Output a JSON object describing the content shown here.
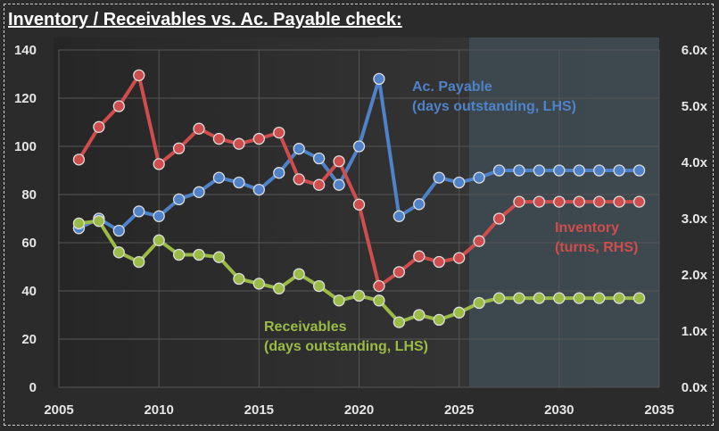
{
  "title": "Inventory / Receivables vs. Ac. Payable check:",
  "chart_data": {
    "type": "line",
    "title": "Inventory / Receivables vs. Ac. Payable check:",
    "xlim": [
      2005,
      2035
    ],
    "x_ticks": [
      "2005",
      "2010",
      "2015",
      "2020",
      "2025",
      "2030",
      "2035"
    ],
    "y_left": {
      "ylim": [
        0,
        140
      ],
      "ticks": [
        "0",
        "20",
        "40",
        "60",
        "80",
        "100",
        "120",
        "140"
      ]
    },
    "y_right": {
      "ylim": [
        0,
        6.0
      ],
      "ticks": [
        "0.0x",
        "1.0x",
        "2.0x",
        "3.0x",
        "4.0x",
        "5.0x",
        "6.0x"
      ]
    },
    "forecast_shading_from": 2025.5,
    "grid": true,
    "x": [
      2006,
      2007,
      2008,
      2009,
      2010,
      2011,
      2012,
      2013,
      2014,
      2015,
      2016,
      2017,
      2018,
      2019,
      2020,
      2021,
      2022,
      2023,
      2024,
      2025,
      2026,
      2027,
      2028,
      2029,
      2030,
      2031,
      2032,
      2033,
      2034
    ],
    "series": [
      {
        "key": "payable",
        "axis": "left",
        "color": "#4f82c8",
        "values": [
          66,
          70,
          65,
          73,
          71,
          78,
          81,
          87,
          85,
          82,
          89,
          99,
          95,
          84,
          100,
          128,
          71,
          76,
          87,
          85,
          87,
          90,
          90,
          90,
          90,
          90,
          90,
          90,
          90
        ],
        "label_lines": [
          "Ac. Payable",
          "(days outstanding, LHS)"
        ]
      },
      {
        "key": "inventory",
        "axis": "right",
        "color": "#cf4d4d",
        "values": [
          4.05,
          4.63,
          5.0,
          5.55,
          3.97,
          4.25,
          4.6,
          4.42,
          4.33,
          4.42,
          4.53,
          3.7,
          3.6,
          4.02,
          3.25,
          1.8,
          2.05,
          2.33,
          2.23,
          2.3,
          2.6,
          3.0,
          3.3,
          3.3,
          3.3,
          3.3,
          3.3,
          3.3,
          3.3
        ],
        "label_lines": [
          "Inventory",
          "(turns, RHS)"
        ]
      },
      {
        "key": "receivables",
        "axis": "left",
        "color": "#9bbb47",
        "values": [
          68,
          69,
          56,
          52,
          61,
          55,
          55,
          54,
          45,
          43,
          41,
          47,
          42,
          36,
          38,
          36,
          27,
          30,
          28,
          31,
          35,
          37,
          37,
          37,
          37,
          37,
          37,
          37,
          37
        ],
        "label_lines": [
          "Receivables",
          "(days outstanding, LHS)"
        ]
      }
    ]
  }
}
